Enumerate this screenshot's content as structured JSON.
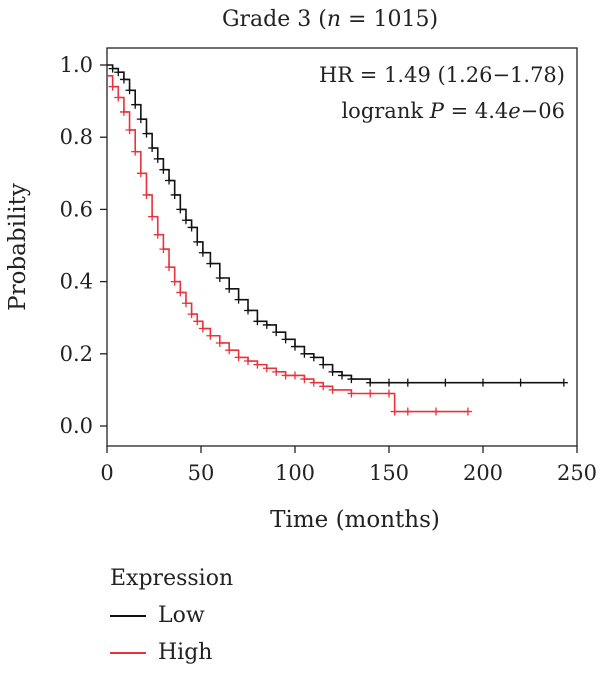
{
  "chart_data": {
    "type": "line",
    "title": "Grade 3 (n = 1015)",
    "title_parts": [
      "Grade 3 (",
      "n",
      " = 1015)"
    ],
    "xlabel": "Time (months)",
    "ylabel": "Probability",
    "xlim": [
      0,
      250
    ],
    "ylim": [
      0,
      1.0
    ],
    "xticks": [
      0,
      50,
      100,
      150,
      200,
      250
    ],
    "yticks": [
      0.0,
      0.2,
      0.4,
      0.6,
      0.8,
      1.0
    ],
    "ytick_labels": [
      "0.0",
      "0.2",
      "0.4",
      "0.6",
      "0.8",
      "1.0"
    ],
    "grid": false,
    "annotations": {
      "hr": "HR = 1.49 (1.26−1.78)",
      "logrank_prefix": "logrank ",
      "logrank_p": "P",
      "logrank_eq": " = 4.4",
      "logrank_e": "e",
      "logrank_exp": "−06"
    },
    "legend": {
      "title": "Expression",
      "placement": "bottom-left"
    },
    "series": [
      {
        "name": "Low",
        "color": "#111111",
        "x": [
          0,
          3,
          6,
          9,
          12,
          15,
          18,
          21,
          24,
          27,
          30,
          33,
          36,
          39,
          42,
          45,
          48,
          51,
          55,
          60,
          65,
          70,
          75,
          80,
          85,
          90,
          95,
          100,
          105,
          110,
          115,
          120,
          125,
          130,
          140,
          150,
          160,
          180,
          200,
          220,
          243
        ],
        "y": [
          1.0,
          0.99,
          0.98,
          0.96,
          0.93,
          0.89,
          0.85,
          0.81,
          0.77,
          0.74,
          0.71,
          0.68,
          0.64,
          0.6,
          0.57,
          0.55,
          0.51,
          0.48,
          0.45,
          0.41,
          0.38,
          0.35,
          0.32,
          0.29,
          0.28,
          0.26,
          0.24,
          0.22,
          0.2,
          0.19,
          0.17,
          0.15,
          0.14,
          0.13,
          0.12,
          0.12,
          0.12,
          0.12,
          0.12,
          0.12,
          0.12
        ]
      },
      {
        "name": "High",
        "color": "#e8323c",
        "x": [
          0,
          3,
          6,
          9,
          12,
          15,
          18,
          21,
          24,
          27,
          30,
          33,
          36,
          39,
          42,
          45,
          48,
          51,
          55,
          60,
          65,
          70,
          75,
          80,
          85,
          90,
          95,
          100,
          105,
          110,
          115,
          120,
          130,
          140,
          150,
          153,
          160,
          175,
          192
        ],
        "y": [
          0.97,
          0.94,
          0.91,
          0.87,
          0.82,
          0.76,
          0.7,
          0.64,
          0.58,
          0.53,
          0.49,
          0.44,
          0.4,
          0.37,
          0.34,
          0.31,
          0.29,
          0.27,
          0.25,
          0.23,
          0.21,
          0.19,
          0.18,
          0.17,
          0.16,
          0.15,
          0.14,
          0.14,
          0.13,
          0.12,
          0.11,
          0.1,
          0.09,
          0.09,
          0.09,
          0.04,
          0.04,
          0.04,
          0.04
        ]
      }
    ]
  }
}
